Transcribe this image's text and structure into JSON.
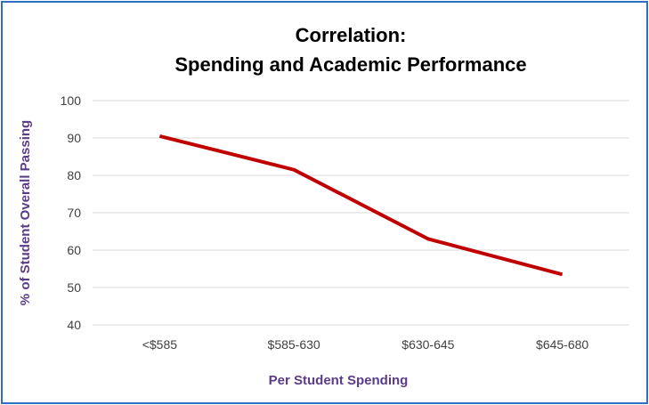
{
  "chart_data": {
    "type": "line",
    "title_lines": [
      "Correlation:",
      "Spending and Academic Performance"
    ],
    "xlabel": "Per Student Spending",
    "ylabel": "% of Student Overall Passing",
    "categories": [
      "<$585",
      "$585-630",
      "$630-645",
      "$645-680"
    ],
    "series": [
      {
        "values": [
          90.5,
          81.5,
          63,
          53.5
        ]
      }
    ],
    "ylim": [
      40,
      100
    ],
    "yticks": [
      "40",
      "50",
      "60",
      "70",
      "80",
      "90",
      "100"
    ],
    "grid": true,
    "legend": "none"
  },
  "colors": {
    "line": "#c00000",
    "axis_title": "#5b3c88",
    "grid": "#d9d9d9",
    "frame": "#2e6fc4"
  }
}
